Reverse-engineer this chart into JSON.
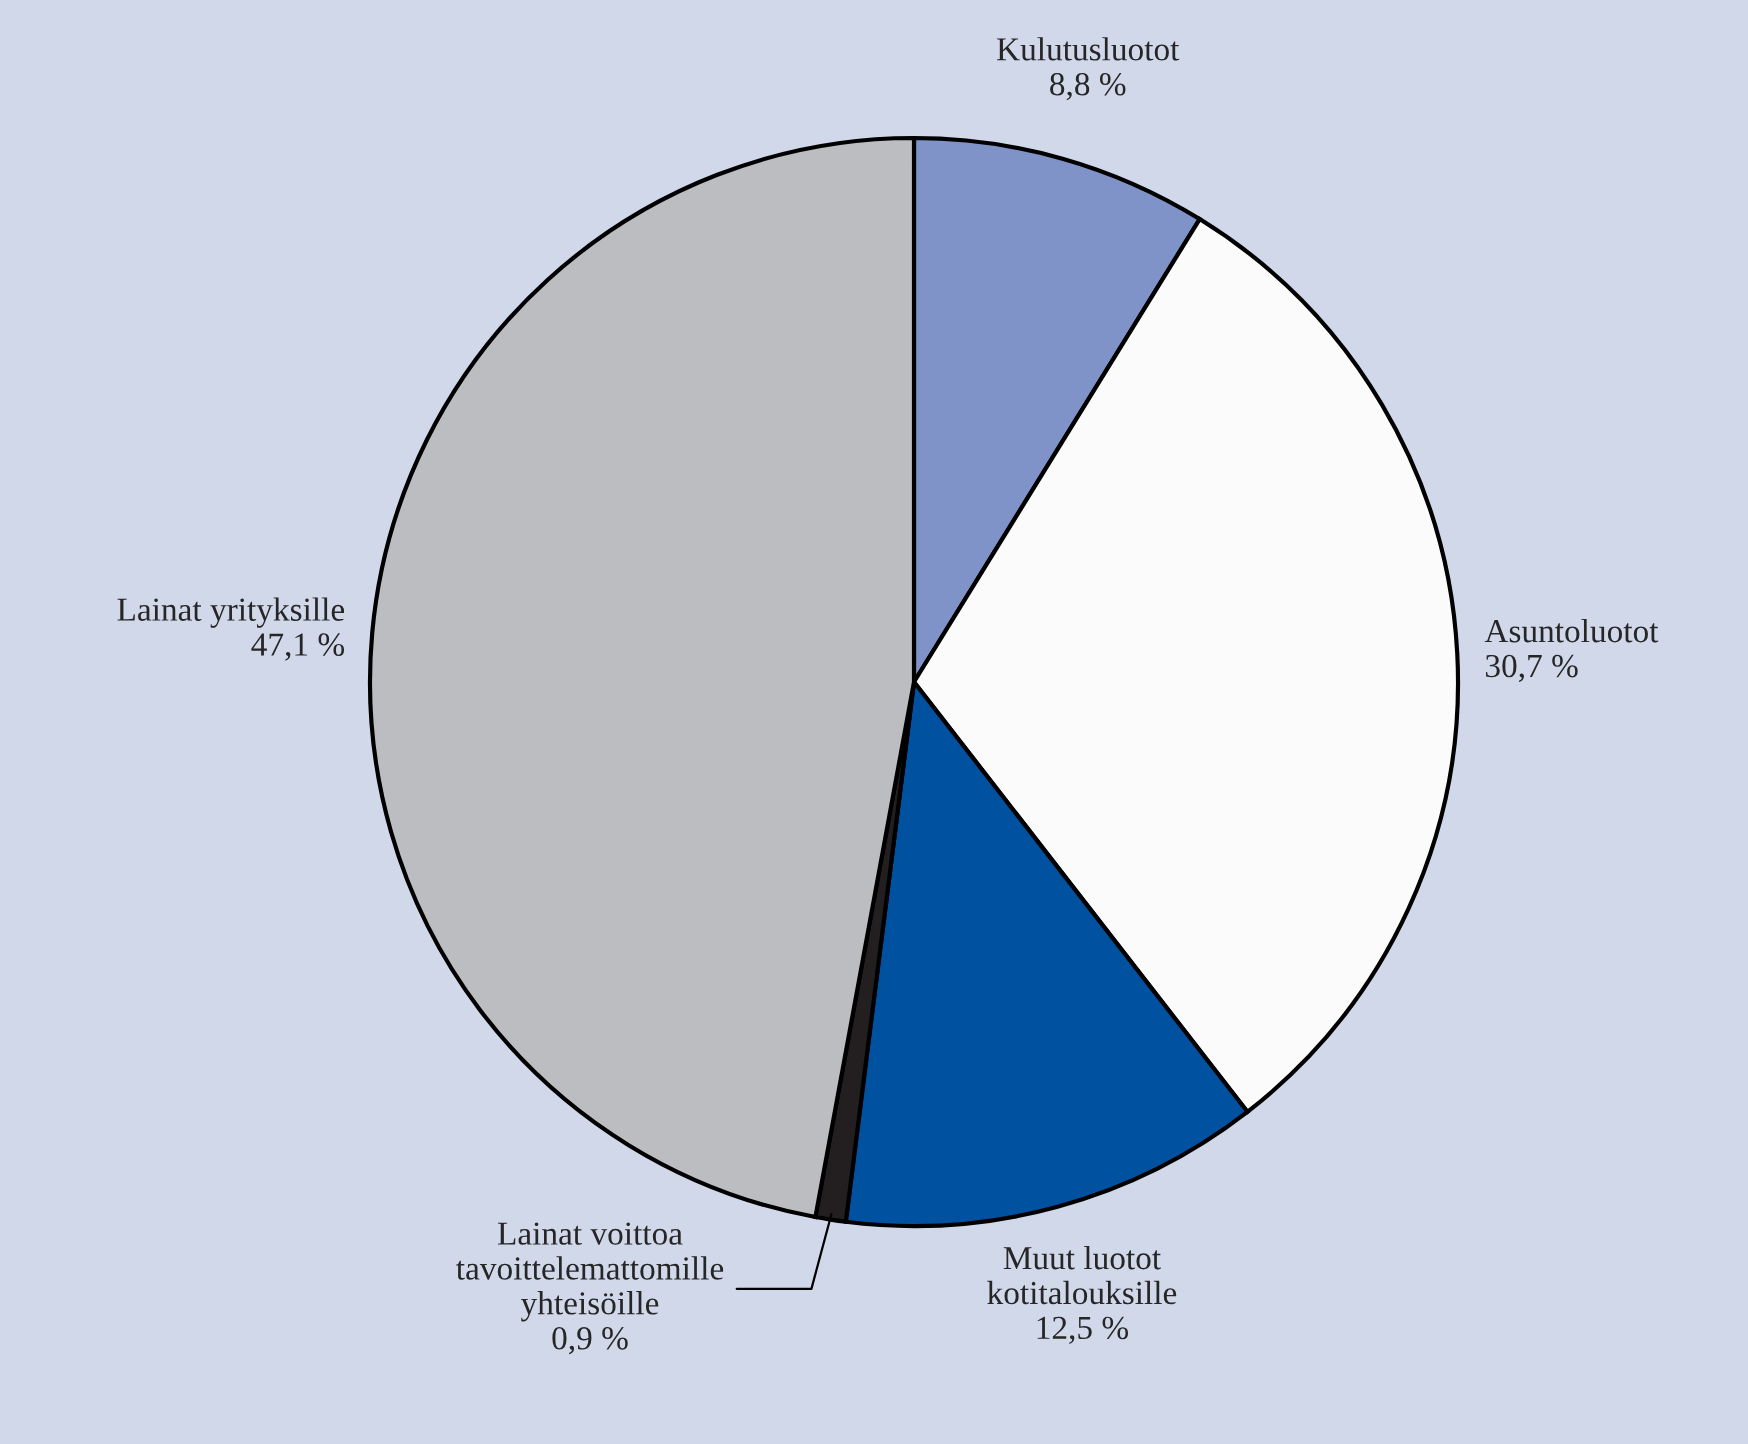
{
  "chart_data": {
    "type": "pie",
    "categories": [
      "Kulutusluotot",
      "Asuntoluotot",
      "Muut luotot\nkotitalouksille",
      "Lainat voittoa\ntavoittelemattomille\nyhteisöille",
      "Lainat yrityksille"
    ],
    "values": [
      8.8,
      30.7,
      12.5,
      0.9,
      47.1
    ],
    "value_labels": [
      "8,8 %",
      "30,7 %",
      "12,5 %",
      "0,9 %",
      "47,1 %"
    ],
    "colors": [
      "#7f93c8",
      "#fbfbfb",
      "#0052a0",
      "#231f20",
      "#bcbdc0"
    ],
    "legend": false
  }
}
